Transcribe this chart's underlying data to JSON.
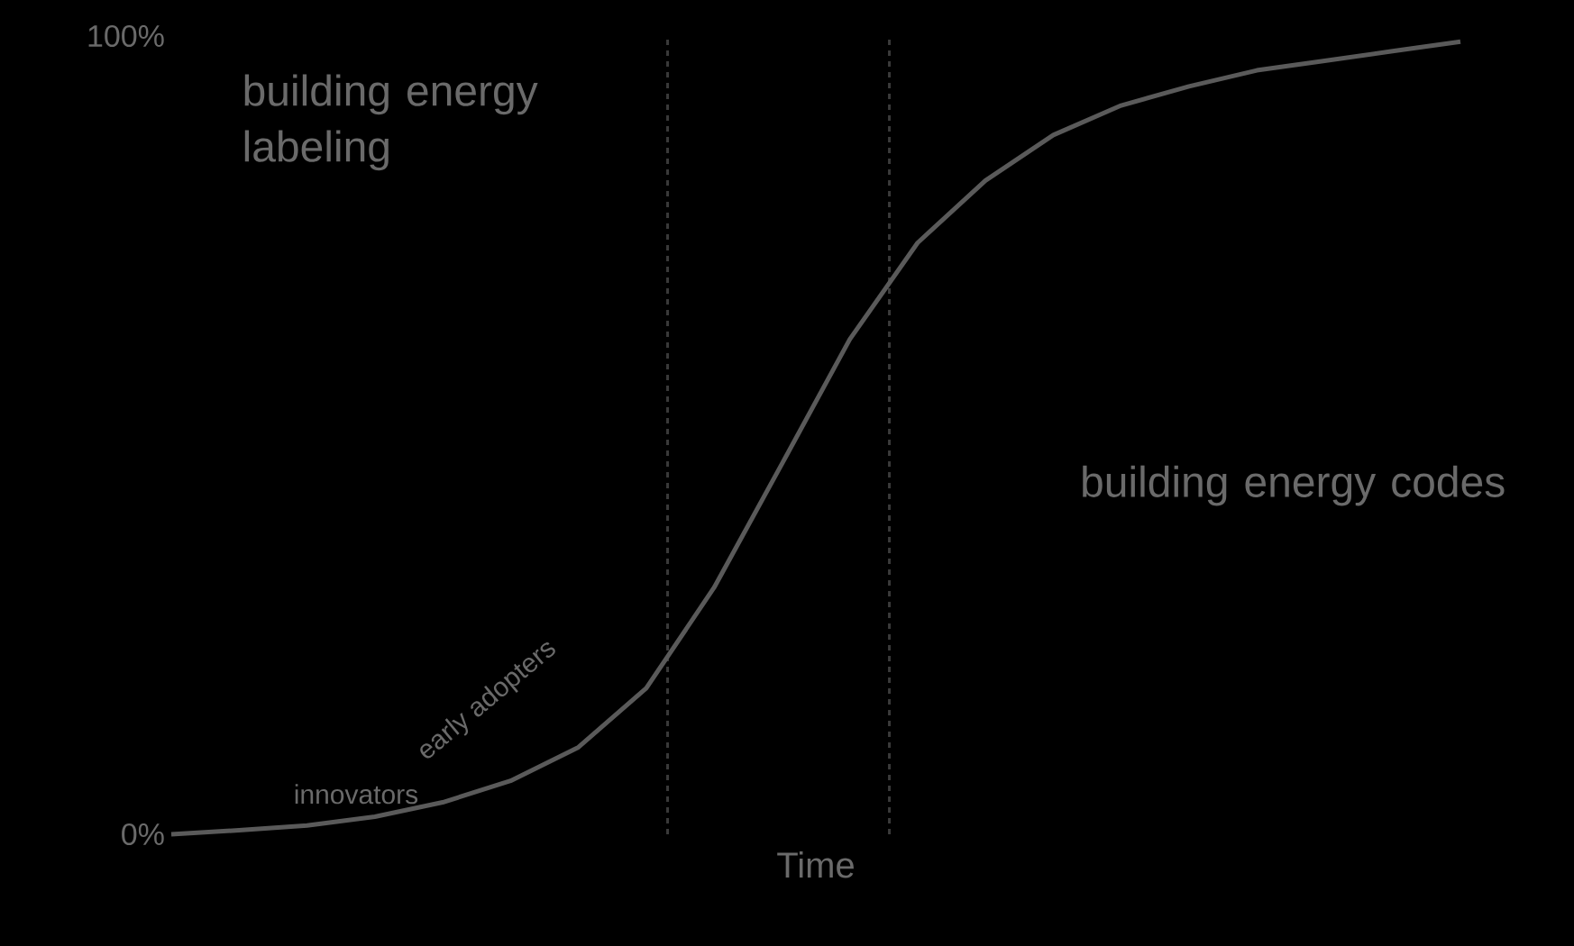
{
  "chart_data": {
    "type": "line",
    "xlabel": "Time",
    "categories": [
      null,
      null,
      null,
      null,
      null,
      null,
      null,
      null,
      null,
      null,
      null,
      null,
      null,
      null,
      null,
      null,
      null,
      null,
      null,
      null
    ],
    "series": [
      {
        "color": "#5a5a5a",
        "values": [
          0,
          0.5,
          1.1,
          2.2,
          4.0,
          6.7,
          10.9,
          18.3,
          30.9,
          46.4,
          62.0,
          74.1,
          81.9,
          87.6,
          91.3,
          93.7,
          95.7,
          96.9,
          98.1,
          99.3
        ]
      }
    ],
    "ylim": [
      0,
      100
    ],
    "yticks": [
      {
        "value": 0,
        "label": "0%"
      },
      {
        "value": 100,
        "label": "100%"
      }
    ],
    "tick_labels": "y",
    "grid": false,
    "marker": "none",
    "line_style": "solid",
    "annotations": [
      "building energy labeling",
      "building energy codes",
      "innovators",
      "early adopters"
    ]
  }
}
